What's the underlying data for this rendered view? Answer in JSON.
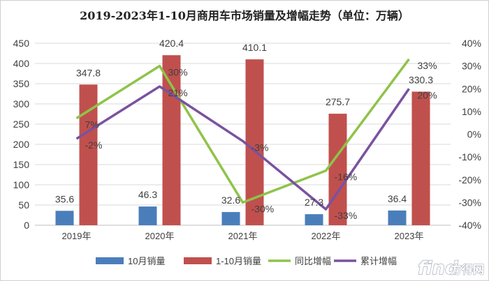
{
  "chart_data": {
    "type": "bar",
    "title": "2019-2023年1-10月商用车市场销量及增幅走势（单位：万辆）",
    "categories": [
      "2019年",
      "2020年",
      "2021年",
      "2022年",
      "2023年"
    ],
    "y_left": {
      "min": 0,
      "max": 450,
      "step": 50
    },
    "y_right": {
      "min": -40,
      "max": 40,
      "step": 10,
      "unit": "%"
    },
    "series": [
      {
        "name": "10月销量",
        "type": "bar",
        "axis": "left",
        "color": "#4a7ebb",
        "values": [
          35.6,
          46.3,
          32.6,
          27.3,
          36.4
        ]
      },
      {
        "name": "1-10月销量",
        "type": "bar",
        "axis": "left",
        "color": "#c0504d",
        "values": [
          347.8,
          420.4,
          410.1,
          275.7,
          330.3
        ]
      },
      {
        "name": "同比增幅",
        "type": "line",
        "axis": "right",
        "color": "#8fc34a",
        "values": [
          7,
          30,
          -30,
          -16,
          33
        ]
      },
      {
        "name": "累计增幅",
        "type": "line",
        "axis": "right",
        "color": "#7a52a0",
        "values": [
          -2,
          21,
          -3,
          -33,
          20
        ]
      }
    ],
    "legend_position": "bottom",
    "grid": "horizontal"
  },
  "watermark": {
    "brand": "find",
    "text": "方得网",
    "colors": {
      "outline": "#9aa3b0"
    }
  }
}
